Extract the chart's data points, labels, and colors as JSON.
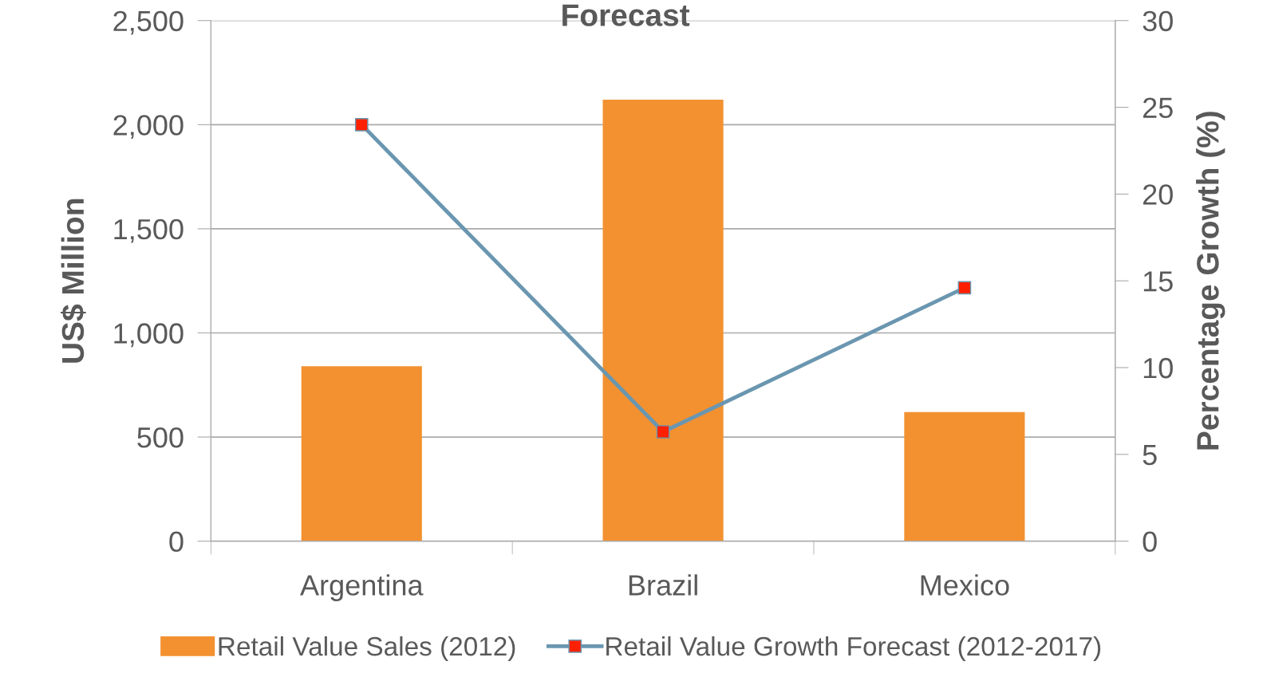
{
  "chart_data": {
    "type": "bar",
    "title": "Forecast",
    "ylabel": "US$ Million",
    "y2label": "Percentage Growth (%)",
    "categories": [
      "Argentina",
      "Brazil",
      "Mexico"
    ],
    "series": [
      {
        "name": "Retail Value Sales (2012)",
        "color": "#f39130",
        "values": [
          840,
          2120,
          620
        ]
      },
      {
        "name": "Retail Value Growth Forecast (2012-2017)",
        "type": "line",
        "axis": "y2",
        "color": "#6a96b0",
        "marker": "square",
        "values": [
          24,
          6.3,
          14.6
        ]
      }
    ],
    "ylim": [
      0,
      2500
    ],
    "yticks": [
      0,
      {
        "value": 500,
        "label": "500"
      },
      {
        "value": 1000,
        "label": "1,000"
      },
      {
        "value": 1500,
        "label": "1,500"
      },
      {
        "value": 2000,
        "label": "2,000"
      },
      {
        "value": 2500,
        "label": "2,500"
      }
    ],
    "y2lim": [
      0,
      30
    ],
    "y2ticks": [
      0,
      5,
      10,
      15,
      20,
      25,
      30
    ],
    "grid": "y",
    "legend": "bottom"
  }
}
